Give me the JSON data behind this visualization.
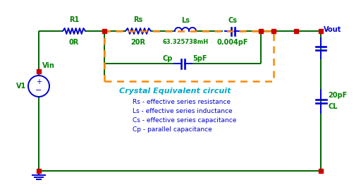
{
  "bg_color": "#ffffff",
  "wire_color": "#006400",
  "component_color": "#0000cd",
  "node_color": "#cc0000",
  "label_color_green": "#008000",
  "label_color_blue": "#0000cd",
  "label_color_cyan": "#00aacc",
  "dashed_box_color": "#ff8800",
  "title": "Crystal Equivalent circuit",
  "legend_lines": [
    "Rs - effective series resistance",
    "Ls - effective series inductance",
    "Cs - effective series capacitance",
    "Cp - parallel capacitance"
  ]
}
